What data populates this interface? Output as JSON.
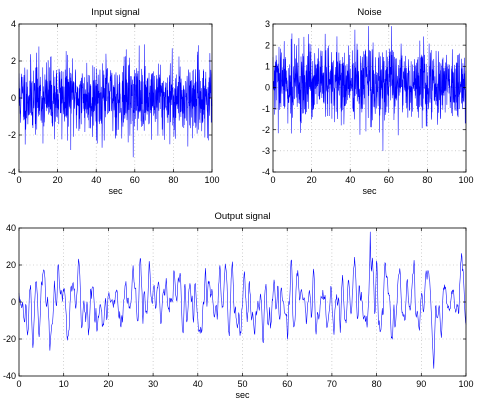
{
  "chart_data": [
    {
      "type": "line",
      "title": "Input signal",
      "xlabel": "sec",
      "ylabel": "",
      "xlim": [
        0,
        100
      ],
      "ylim": [
        -4,
        4
      ],
      "xticks": [
        "0",
        "20",
        "40",
        "60",
        "80",
        "100"
      ],
      "yticks": [
        "4",
        "2",
        "0",
        "-2",
        "-4"
      ],
      "grid": true,
      "color": "#0000ff",
      "signal": {
        "kind": "white-noise",
        "n": 1000,
        "mean": 0,
        "std": 1.0,
        "min": -3.2,
        "max": 2.9,
        "seed": 11
      },
      "series": [
        {
          "x_range": [
            0,
            100
          ]
        }
      ]
    },
    {
      "type": "line",
      "title": "Noise",
      "xlabel": "sec",
      "ylabel": "",
      "xlim": [
        0,
        100
      ],
      "ylim": [
        -4,
        3
      ],
      "xticks": [
        "0",
        "20",
        "40",
        "60",
        "80",
        "100"
      ],
      "yticks": [
        "3",
        "2",
        "1",
        "0",
        "-1",
        "-2",
        "-3",
        "-4"
      ],
      "grid": true,
      "color": "#0000ff",
      "signal": {
        "kind": "white-noise",
        "n": 1000,
        "mean": 0.2,
        "std": 0.9,
        "min": -3.0,
        "max": 2.9,
        "seed": 29
      },
      "series": [
        {
          "x_range": [
            0,
            100
          ]
        }
      ]
    },
    {
      "type": "line",
      "title": "Output signal",
      "xlabel": "sec",
      "ylabel": "",
      "xlim": [
        0,
        100
      ],
      "ylim": [
        -40,
        40
      ],
      "xticks": [
        "0",
        "10",
        "20",
        "30",
        "40",
        "50",
        "60",
        "70",
        "80",
        "90",
        "100"
      ],
      "yticks": [
        "40",
        "20",
        "0",
        "-20",
        "-40"
      ],
      "grid": true,
      "color": "#0000ff",
      "signal": {
        "kind": "filtered-noise",
        "n": 1000,
        "mean": 0,
        "std": 10,
        "min": -36,
        "max": 38,
        "seed": 53
      },
      "series": [
        {
          "x_range": [
            0,
            100
          ]
        }
      ]
    }
  ]
}
